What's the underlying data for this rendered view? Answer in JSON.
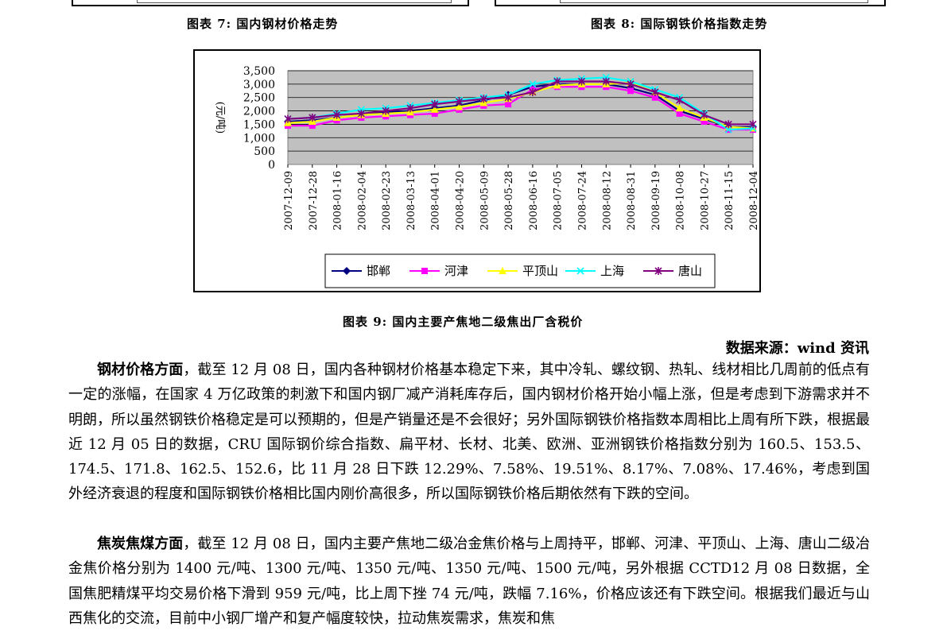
{
  "captions": {
    "fig7": "图表 7: 国内钢材价格走势",
    "fig8": "图表 8: 国际钢铁价格指数走势",
    "fig9": "图表 9: 国内主要产焦地二级焦出厂含税价"
  },
  "source": "数据来源：wind 资讯",
  "paragraphs": [
    {
      "lead": "钢材价格方面",
      "body": "，截至 12 月 08 日，国内各种钢材价格基本稳定下来，其中冷轧、螺纹钢、热轧、线材相比几周前的低点有一定的涨幅，在国家 4 万亿政策的刺激下和国内钢厂减产消耗库存后，国内钢材价格开始小幅上涨，但是考虑到下游需求并不明朗，所以虽然钢铁价格稳定是可以预期的，但是产销量还是不会很好；另外国际钢铁价格指数本周相比上周有所下跌，根据最近 12 月 05 日的数据，CRU 国际钢价综合指数、扁平材、长材、北美、欧洲、亚洲钢铁价格指数分别为 160.5、153.5、174.5、171.8、162.5、152.6，比 11 月 28 日下跌 12.29%、7.58%、19.51%、8.17%、7.08%、17.46%，考虑到国外经济衰退的程度和国际钢铁价格相比国内刚价高很多，所以国际钢铁价格后期依然有下跌的空间。"
    },
    {
      "lead": "焦炭焦煤方面",
      "body": "，截至 12 月 08 日，国内主要产焦地二级冶金焦价格与上周持平，邯郸、河津、平顶山、上海、唐山二级冶金焦价格分别为 1400 元/吨、1300 元/吨、1350 元/吨、1350 元/吨、1500 元/吨，另外根据 CCTD12 月 08 日数据，全国焦肥精煤平均交易价格下滑到 959 元/吨，比上周下挫 74 元/吨，跌幅 7.16%，价格应该还有下跌空间。根据我们最近与山西焦化的交流，目前中小钢厂增产和复产幅度较快，拉动焦炭需求，焦炭和焦"
    }
  ],
  "chart_data": {
    "type": "line",
    "ylabel": "(元/吨)",
    "ylim": [
      0,
      3500
    ],
    "yticks": [
      "0",
      "500",
      "1,000",
      "1,500",
      "2,000",
      "2,500",
      "3,000",
      "3,500"
    ],
    "xticks": [
      "2007-12-09",
      "2007-12-28",
      "2008-01-16",
      "2008-02-04",
      "2008-02-23",
      "2008-03-13",
      "2008-04-01",
      "2008-04-20",
      "2008-05-09",
      "2008-05-28",
      "2008-06-16",
      "2008-07-05",
      "2008-07-24",
      "2008-08-12",
      "2008-08-31",
      "2008-09-19",
      "2008-10-08",
      "2008-10-27",
      "2008-11-15",
      "2008-12-04"
    ],
    "x": [
      "2007-12-09",
      "2007-12-28",
      "2008-01-16",
      "2008-02-04",
      "2008-02-23",
      "2008-03-13",
      "2008-04-01",
      "2008-04-20",
      "2008-05-09",
      "2008-05-28",
      "2008-06-16",
      "2008-07-05",
      "2008-07-24",
      "2008-08-12",
      "2008-08-31",
      "2008-09-19",
      "2008-10-08",
      "2008-10-27",
      "2008-11-15",
      "2008-12-04"
    ],
    "grid": true,
    "plot_bg": "#c0c0c0",
    "legend_position": "bottom",
    "series": [
      {
        "name": "邯郸",
        "color": "#000080",
        "marker": "diamond",
        "values": [
          1600,
          1650,
          1750,
          1850,
          1950,
          2000,
          2100,
          2200,
          2400,
          2600,
          2900,
          3000,
          3000,
          3000,
          2850,
          2600,
          2000,
          1700,
          1400,
          1400
        ]
      },
      {
        "name": "河津",
        "color": "#ff00ff",
        "marker": "square",
        "values": [
          1450,
          1450,
          1650,
          1750,
          1800,
          1850,
          1900,
          2050,
          2200,
          2250,
          2800,
          2900,
          2900,
          2900,
          2750,
          2500,
          1900,
          1600,
          1300,
          1300
        ]
      },
      {
        "name": "平顶山",
        "color": "#ffff00",
        "marker": "triangle",
        "values": [
          1550,
          1600,
          1750,
          1850,
          1900,
          1950,
          2050,
          2150,
          2300,
          2450,
          2700,
          2950,
          3000,
          3000,
          3050,
          2700,
          2100,
          1750,
          1400,
          1350
        ]
      },
      {
        "name": "上海",
        "color": "#00ffff",
        "marker": "x",
        "values": [
          1700,
          1750,
          1900,
          2050,
          2100,
          2200,
          2300,
          2400,
          2500,
          2600,
          3000,
          3150,
          3200,
          3250,
          3100,
          2800,
          2500,
          1900,
          1300,
          1350
        ]
      },
      {
        "name": "唐山",
        "color": "#800080",
        "marker": "star",
        "values": [
          1700,
          1750,
          1850,
          1900,
          2000,
          2100,
          2250,
          2350,
          2450,
          2500,
          2700,
          3100,
          3100,
          3100,
          3000,
          2700,
          2400,
          1850,
          1500,
          1500
        ]
      }
    ]
  }
}
